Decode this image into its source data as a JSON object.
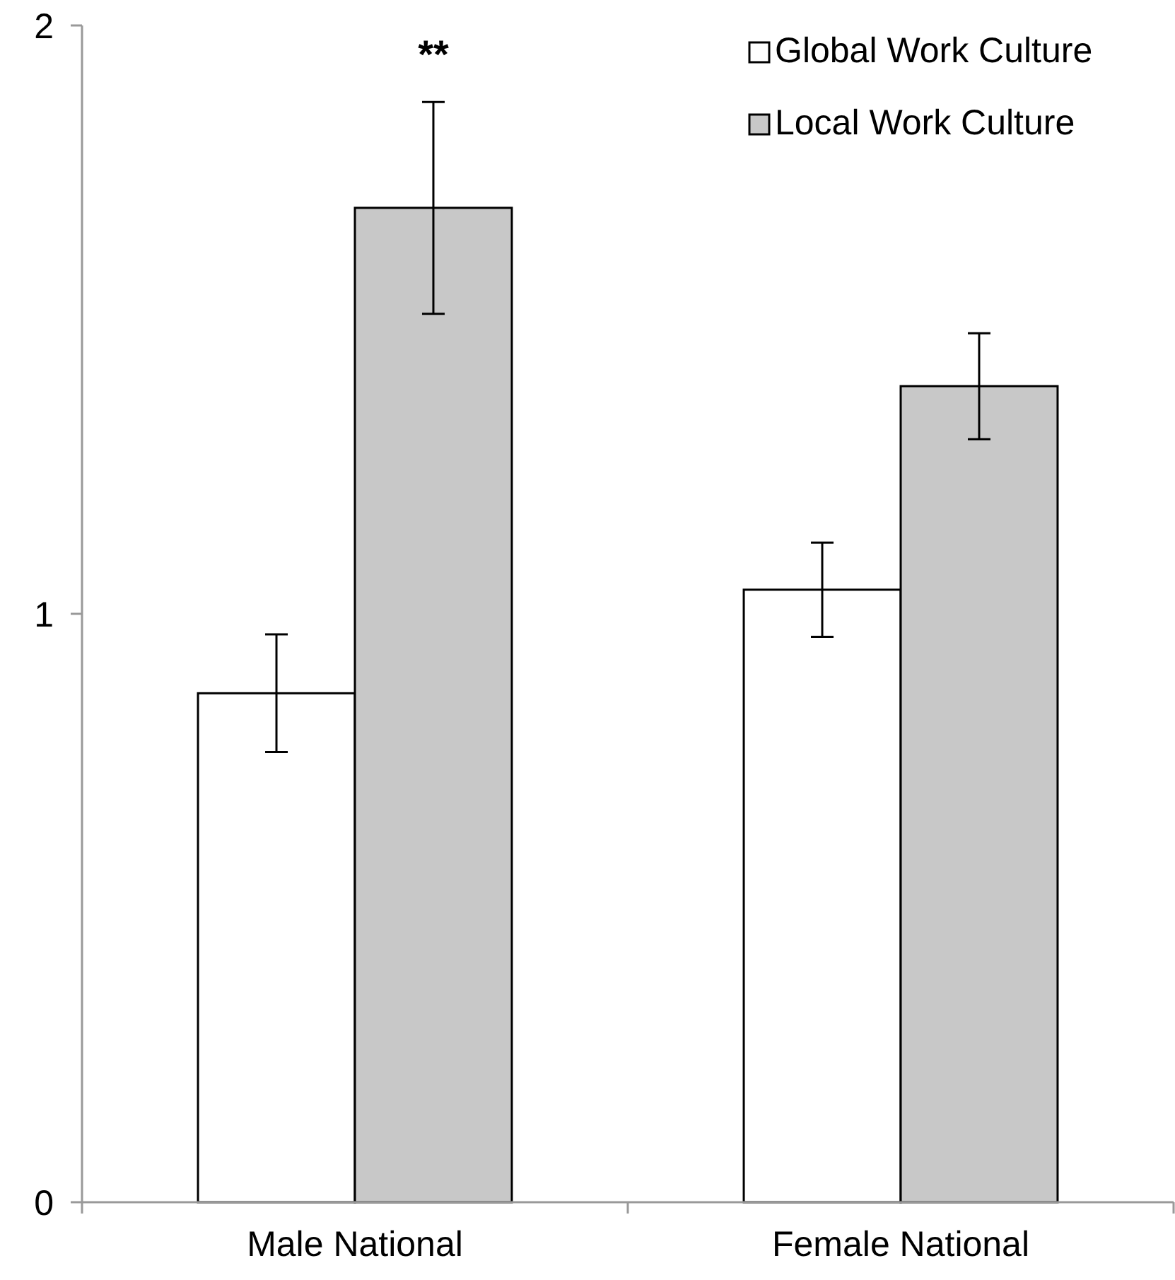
{
  "chart_data": {
    "type": "bar",
    "categories": [
      "Male National",
      "Female National"
    ],
    "series": [
      {
        "name": "Global Work Culture",
        "color": "#ffffff",
        "values": [
          0.865,
          1.041
        ],
        "errors": [
          0.1,
          0.08
        ]
      },
      {
        "name": "Local Work Culture",
        "color": "#c8c8c8",
        "values": [
          1.69,
          1.387
        ],
        "errors": [
          0.18,
          0.09
        ]
      }
    ],
    "ylim": [
      0,
      2
    ],
    "yticks": [
      0,
      1,
      2
    ],
    "grid": false,
    "legend": "top right",
    "annotations": [
      "**"
    ]
  }
}
